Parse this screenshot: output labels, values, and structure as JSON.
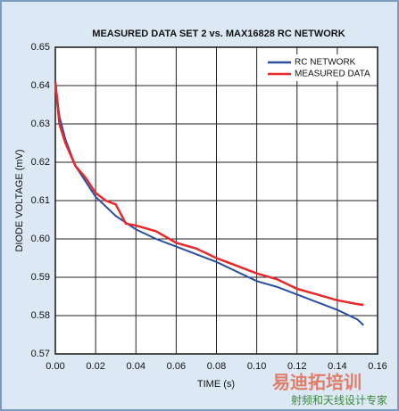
{
  "chart_data": {
    "type": "line",
    "title": "MEASURED DATA SET 2 vs. MAX16828 RC NETWORK",
    "x_label": "TIME (s)",
    "y_label": "DIODE VOLTAGE (mV)",
    "series": [
      {
        "name": "RC NETWORK",
        "color": "#2b4fa0",
        "x": [
          0,
          0.002,
          0.005,
          0.01,
          0.02,
          0.03,
          0.04,
          0.05,
          0.06,
          0.07,
          0.08,
          0.09,
          0.1,
          0.11,
          0.12,
          0.13,
          0.14,
          0.15,
          0.153
        ],
        "values": [
          0.641,
          0.632,
          0.626,
          0.619,
          0.611,
          0.606,
          0.6025,
          0.6,
          0.598,
          0.596,
          0.594,
          0.5915,
          0.589,
          0.5875,
          0.5855,
          0.5835,
          0.5815,
          0.579,
          0.5775
        ]
      },
      {
        "name": "MEASURED DATA",
        "color": "#e8282b",
        "x": [
          0,
          0.002,
          0.005,
          0.01,
          0.015,
          0.02,
          0.025,
          0.03,
          0.035,
          0.04,
          0.05,
          0.06,
          0.07,
          0.08,
          0.09,
          0.1,
          0.11,
          0.12,
          0.13,
          0.14,
          0.15,
          0.153
        ],
        "values": [
          0.641,
          0.63,
          0.625,
          0.619,
          0.616,
          0.612,
          0.61,
          0.609,
          0.604,
          0.6035,
          0.602,
          0.599,
          0.5975,
          0.595,
          0.593,
          0.591,
          0.5895,
          0.587,
          0.5855,
          0.584,
          0.583,
          0.5828
        ]
      }
    ],
    "xlim": [
      0,
      0.16
    ],
    "xticks": [
      {
        "value": 0,
        "label": "0.00"
      },
      0.02,
      0.04,
      0.06,
      0.08,
      {
        "value": 0.1,
        "label": "0.10"
      },
      0.12,
      0.14,
      0.16
    ],
    "ylim": [
      0.57,
      0.65
    ],
    "yticks": [
      0.57,
      0.58,
      0.59,
      {
        "value": 0.6,
        "label": "0.60"
      },
      0.61,
      0.62,
      0.63,
      0.64,
      0.65
    ],
    "grid": true,
    "legend": "top-right"
  },
  "watermark": {
    "brand": "易迪拓培训",
    "slogan": "射频和天线设计专家"
  }
}
